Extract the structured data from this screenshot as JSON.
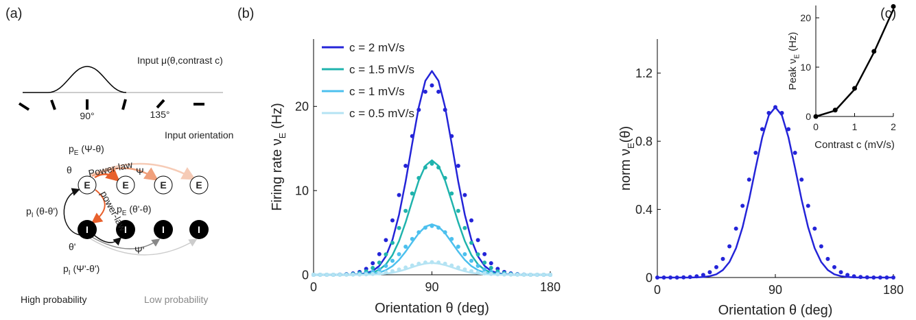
{
  "panel_labels": [
    "(a)",
    "(b)",
    "(c)"
  ],
  "diagram": {
    "input": "Input μ(θ,contrast c)",
    "deg90": "90°",
    "deg135": "135°",
    "input_orientation": "Input orientation",
    "pE_psi": {
      "text": "p",
      "sub": "E",
      "tail": " (Ψ-θ)"
    },
    "theta": "θ",
    "power_law_e": "Power-law",
    "psi": "Ψ",
    "power_law_i": "power-law",
    "pI_theta": {
      "text": "p",
      "sub": "I",
      "tail": " (θ-θ')"
    },
    "pE_theta": {
      "text": "p",
      "sub": "E",
      "tail": " (θ'-θ)"
    },
    "theta_prime": "θ'",
    "psi_prime": "Ψ'",
    "pI_psi": {
      "text": "p",
      "sub": "I",
      "tail": " (Ψ'-θ')"
    },
    "e_nodes": [
      "E",
      "E",
      "E",
      "E"
    ],
    "i_nodes": [
      "I",
      "I",
      "I",
      "I"
    ],
    "high": "High probability",
    "low": "Low probability"
  },
  "chart_data": [
    {
      "type": "line",
      "xlabel": "Orientation θ (deg)",
      "ylabel": {
        "text": "Firing rate ν",
        "sub": "E",
        "tail": " (Hz)"
      },
      "xlim": [
        0,
        180
      ],
      "xticks": [
        0,
        90,
        180
      ],
      "ylim": [
        0,
        28
      ],
      "yticks": [
        0,
        10,
        20
      ],
      "legend": "upper left",
      "x": [
        0,
        5,
        10,
        15,
        20,
        25,
        30,
        35,
        40,
        45,
        50,
        55,
        60,
        65,
        70,
        75,
        80,
        85,
        90,
        95,
        100,
        105,
        110,
        115,
        120,
        125,
        130,
        135,
        140,
        145,
        150,
        155,
        160,
        165,
        170,
        175,
        180
      ],
      "series": [
        {
          "name": "c = 2 mV/s",
          "color": "#2424d8",
          "style": "line",
          "values": [
            0,
            0,
            0,
            0,
            0,
            0,
            0.02,
            0.07,
            0.19,
            0.46,
            1.06,
            2.2,
            4.16,
            7.14,
            11.08,
            15.58,
            19.92,
            23.04,
            24.2,
            23.04,
            19.92,
            15.58,
            11.08,
            7.14,
            4.16,
            2.2,
            1.06,
            0.46,
            0.19,
            0.07,
            0.02,
            0,
            0,
            0,
            0,
            0,
            0
          ]
        },
        {
          "name": "c = 1.5 mV/s",
          "color": "#1fb3ad",
          "style": "line",
          "values": [
            0,
            0,
            0,
            0,
            0,
            0,
            0.01,
            0.04,
            0.11,
            0.26,
            0.6,
            1.24,
            2.34,
            4.01,
            6.23,
            8.76,
            11.19,
            12.95,
            13.6,
            12.95,
            11.19,
            8.76,
            6.23,
            4.01,
            2.34,
            1.24,
            0.6,
            0.26,
            0.11,
            0.04,
            0.01,
            0,
            0,
            0,
            0,
            0,
            0
          ]
        },
        {
          "name": "c = 1 mV/s",
          "color": "#4cc0ee",
          "style": "line",
          "values": [
            0,
            0,
            0,
            0,
            0,
            0,
            0.01,
            0.02,
            0.05,
            0.11,
            0.26,
            0.55,
            1.03,
            1.77,
            2.75,
            3.86,
            4.94,
            5.71,
            6,
            5.71,
            4.94,
            3.86,
            2.75,
            1.77,
            1.03,
            0.55,
            0.26,
            0.11,
            0.05,
            0.02,
            0.01,
            0,
            0,
            0,
            0,
            0,
            0
          ]
        },
        {
          "name": "c = 0.5 mV/s",
          "color": "#b4e3f3",
          "style": "line",
          "values": [
            0,
            0,
            0,
            0,
            0,
            0,
            0,
            0,
            0.01,
            0.03,
            0.06,
            0.13,
            0.24,
            0.41,
            0.64,
            0.9,
            1.15,
            1.33,
            1.4,
            1.33,
            1.15,
            0.9,
            0.64,
            0.41,
            0.24,
            0.13,
            0.06,
            0.03,
            0.01,
            0,
            0,
            0,
            0,
            0,
            0,
            0,
            0
          ]
        },
        {
          "color": "#2424d8",
          "style": "dots",
          "values": [
            0,
            0,
            0,
            0,
            0.02,
            0.07,
            0.16,
            0.34,
            0.7,
            1.37,
            2.45,
            4.12,
            6.46,
            9.47,
            12.94,
            16.47,
            19.6,
            21.74,
            22.5,
            21.74,
            19.6,
            16.47,
            12.94,
            9.47,
            6.46,
            4.12,
            2.45,
            1.37,
            0.7,
            0.34,
            0.16,
            0.07,
            0.02,
            0,
            0,
            0,
            0
          ]
        },
        {
          "color": "#1fb3ad",
          "style": "dots",
          "values": [
            0,
            0,
            0,
            0,
            0.01,
            0.04,
            0.09,
            0.2,
            0.41,
            0.81,
            1.44,
            2.42,
            3.79,
            5.56,
            7.59,
            9.66,
            11.5,
            12.75,
            13.2,
            12.75,
            11.5,
            9.66,
            7.59,
            5.56,
            3.79,
            2.42,
            1.44,
            0.81,
            0.41,
            0.2,
            0.09,
            0.04,
            0.01,
            0,
            0,
            0,
            0
          ]
        },
        {
          "color": "#4cc0ee",
          "style": "dots",
          "values": [
            0,
            0,
            0,
            0,
            0.01,
            0.02,
            0.04,
            0.09,
            0.18,
            0.35,
            0.63,
            1.06,
            1.66,
            2.44,
            3.34,
            4.25,
            5.05,
            5.6,
            5.8,
            5.6,
            5.05,
            4.25,
            3.34,
            2.44,
            1.66,
            1.06,
            0.63,
            0.35,
            0.18,
            0.09,
            0.04,
            0.02,
            0.01,
            0,
            0,
            0,
            0
          ]
        },
        {
          "color": "#b4e3f3",
          "style": "dots",
          "values": [
            0,
            0,
            0,
            0,
            0,
            0,
            0.01,
            0.02,
            0.05,
            0.09,
            0.16,
            0.27,
            0.43,
            0.63,
            0.86,
            1.1,
            1.31,
            1.45,
            1.5,
            1.45,
            1.31,
            1.1,
            0.86,
            0.63,
            0.43,
            0.27,
            0.16,
            0.09,
            0.05,
            0.02,
            0.01,
            0,
            0,
            0,
            0,
            0,
            0
          ]
        }
      ]
    },
    {
      "type": "line",
      "xlabel": "Orientation θ (deg)",
      "ylabel": {
        "text": "norm ν",
        "sub": "E",
        "tail": "(θ)"
      },
      "xlim": [
        0,
        180
      ],
      "xticks": [
        0,
        90,
        180
      ],
      "ylim": [
        0,
        1.4
      ],
      "yticks": [
        0,
        0.4,
        0.8,
        1.2
      ],
      "x": [
        0,
        5,
        10,
        15,
        20,
        25,
        30,
        35,
        40,
        45,
        50,
        55,
        60,
        65,
        70,
        75,
        80,
        85,
        90,
        95,
        100,
        105,
        110,
        115,
        120,
        125,
        130,
        135,
        140,
        145,
        150,
        155,
        160,
        165,
        170,
        175,
        180
      ],
      "series": [
        {
          "color": "#2424d8",
          "style": "line",
          "values": [
            0,
            0,
            0,
            0,
            0,
            0,
            0.001,
            0.003,
            0.008,
            0.019,
            0.044,
            0.091,
            0.172,
            0.295,
            0.458,
            0.644,
            0.823,
            0.952,
            1,
            0.952,
            0.823,
            0.644,
            0.458,
            0.295,
            0.172,
            0.091,
            0.044,
            0.019,
            0.008,
            0.003,
            0.001,
            0,
            0,
            0,
            0,
            0,
            0
          ]
        },
        {
          "color": "#2424d8",
          "style": "dots",
          "values": [
            0,
            0,
            0,
            0,
            0.001,
            0.003,
            0.007,
            0.015,
            0.031,
            0.061,
            0.109,
            0.183,
            0.287,
            0.421,
            0.575,
            0.732,
            0.871,
            0.966,
            1,
            0.966,
            0.871,
            0.732,
            0.575,
            0.421,
            0.287,
            0.183,
            0.109,
            0.061,
            0.031,
            0.015,
            0.007,
            0.003,
            0.001,
            0,
            0,
            0,
            0
          ]
        }
      ]
    },
    {
      "type": "line",
      "xlabel": "Contrast c (mV/s)",
      "ylabel": {
        "text": "Peak ν",
        "sub": "E",
        "tail": " (Hz)"
      },
      "xlim": [
        0,
        2
      ],
      "xticks": [
        0,
        1,
        2
      ],
      "ylim": [
        0,
        22.5
      ],
      "yticks": [
        0,
        10,
        20
      ],
      "x": [
        0,
        0.5,
        1,
        1.5,
        2
      ],
      "series": [
        {
          "color": "#000000",
          "style": "line",
          "values": [
            0,
            1.2,
            5.5,
            13,
            21.7
          ]
        },
        {
          "color": "#000000",
          "style": "dots",
          "values": [
            0,
            1.3,
            5.7,
            13.2,
            22.3
          ]
        }
      ]
    }
  ]
}
